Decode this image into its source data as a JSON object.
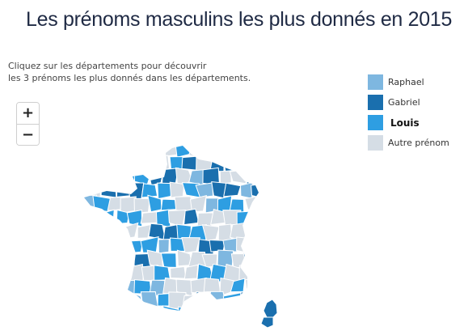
{
  "title": "Les prénoms masculins les plus donnés en 2015",
  "intro": {
    "line1": "Cliquez sur les départements pour découvrir",
    "line2": "les 3 prénoms les plus donnés dans les départements."
  },
  "zoom": {
    "in_label": "+",
    "out_label": "−"
  },
  "legend": [
    {
      "label": "Raphael",
      "color": "#7eb7e0",
      "bold": false
    },
    {
      "label": "Gabriel",
      "color": "#1a6fae",
      "bold": false
    },
    {
      "label": "Louis",
      "color": "#2e9ee2",
      "bold": true
    },
    {
      "label": "Autre prénom",
      "color": "#d5dde5",
      "bold": false
    }
  ],
  "map_colors": {
    "raphael": "#7eb7e0",
    "gabriel": "#1a6fae",
    "louis": "#2e9ee2",
    "autre": "#d5dde5",
    "border": "#ffffff"
  }
}
